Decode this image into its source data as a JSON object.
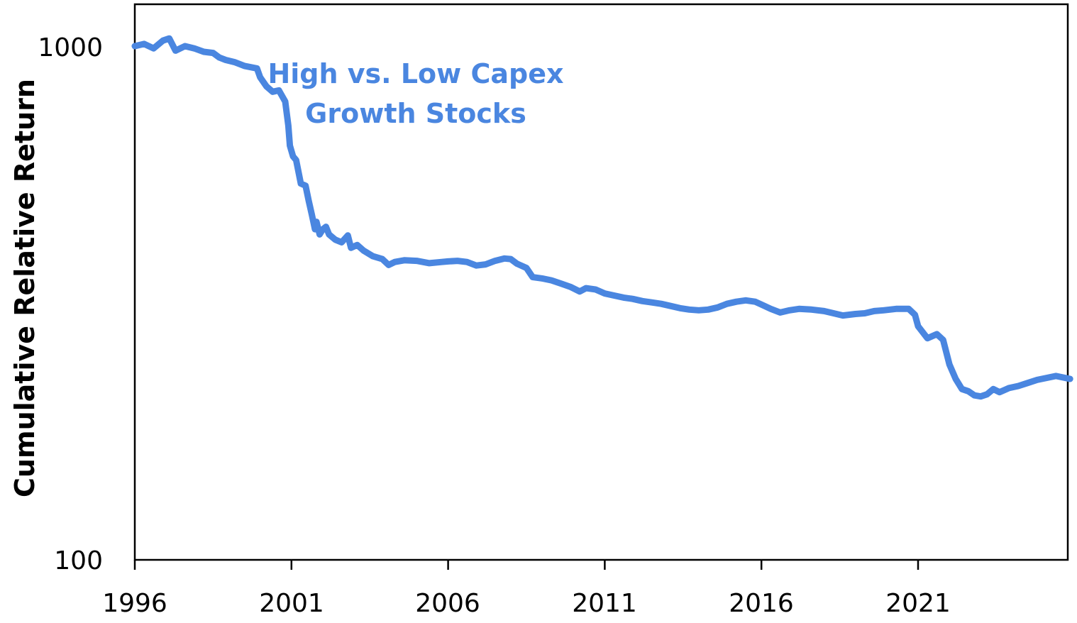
{
  "chart_data": {
    "type": "line",
    "title": "High vs. Low Capex\nGrowth Stocks",
    "ylabel": "Cumulative Relative Return",
    "xlabel": "",
    "yscale": "log",
    "ylim": [
      100,
      1080
    ],
    "xlim": [
      1996,
      2025.85
    ],
    "x_ticks": [
      1996,
      2001,
      2006,
      2011,
      2016,
      2021
    ],
    "y_ticks": [
      100,
      1000
    ],
    "grid": false,
    "legend": "none",
    "series": [
      {
        "color": "#4a86e0",
        "points": [
          [
            1996.0,
            1000
          ],
          [
            1996.3,
            1010
          ],
          [
            1996.6,
            990
          ],
          [
            1996.9,
            1025
          ],
          [
            1997.1,
            1035
          ],
          [
            1997.3,
            980
          ],
          [
            1997.6,
            1000
          ],
          [
            1997.9,
            990
          ],
          [
            1998.2,
            975
          ],
          [
            1998.5,
            970
          ],
          [
            1998.7,
            950
          ],
          [
            1998.9,
            940
          ],
          [
            1999.2,
            930
          ],
          [
            1999.5,
            915
          ],
          [
            1999.9,
            905
          ],
          [
            2000.0,
            870
          ],
          [
            2000.2,
            835
          ],
          [
            2000.4,
            815
          ],
          [
            2000.6,
            820
          ],
          [
            2000.8,
            780
          ],
          [
            2000.9,
            700
          ],
          [
            2000.95,
            640
          ],
          [
            2001.05,
            610
          ],
          [
            2001.15,
            600
          ],
          [
            2001.3,
            540
          ],
          [
            2001.45,
            535
          ],
          [
            2001.55,
            500
          ],
          [
            2001.65,
            470
          ],
          [
            2001.75,
            440
          ],
          [
            2001.8,
            455
          ],
          [
            2001.9,
            430
          ],
          [
            2002.0,
            440
          ],
          [
            2002.1,
            445
          ],
          [
            2002.2,
            430
          ],
          [
            2002.4,
            420
          ],
          [
            2002.6,
            415
          ],
          [
            2002.8,
            428
          ],
          [
            2002.9,
            405
          ],
          [
            2003.1,
            410
          ],
          [
            2003.3,
            400
          ],
          [
            2003.6,
            390
          ],
          [
            2003.9,
            385
          ],
          [
            2004.1,
            375
          ],
          [
            2004.3,
            380
          ],
          [
            2004.6,
            383
          ],
          [
            2005.0,
            382
          ],
          [
            2005.4,
            378
          ],
          [
            2005.8,
            380
          ],
          [
            2006.0,
            381
          ],
          [
            2006.3,
            382
          ],
          [
            2006.6,
            380
          ],
          [
            2006.9,
            374
          ],
          [
            2007.2,
            376
          ],
          [
            2007.5,
            382
          ],
          [
            2007.8,
            386
          ],
          [
            2008.0,
            385
          ],
          [
            2008.2,
            377
          ],
          [
            2008.5,
            370
          ],
          [
            2008.7,
            355
          ],
          [
            2009.0,
            353
          ],
          [
            2009.3,
            350
          ],
          [
            2009.6,
            345
          ],
          [
            2009.9,
            340
          ],
          [
            2010.2,
            333
          ],
          [
            2010.4,
            338
          ],
          [
            2010.7,
            336
          ],
          [
            2011.0,
            330
          ],
          [
            2011.3,
            327
          ],
          [
            2011.6,
            324
          ],
          [
            2011.9,
            322
          ],
          [
            2012.2,
            319
          ],
          [
            2012.5,
            317
          ],
          [
            2012.8,
            315
          ],
          [
            2013.1,
            312
          ],
          [
            2013.4,
            309
          ],
          [
            2013.7,
            307
          ],
          [
            2014.0,
            306
          ],
          [
            2014.3,
            307
          ],
          [
            2014.6,
            310
          ],
          [
            2014.9,
            315
          ],
          [
            2015.2,
            318
          ],
          [
            2015.5,
            320
          ],
          [
            2015.8,
            318
          ],
          [
            2016.0,
            314
          ],
          [
            2016.3,
            308
          ],
          [
            2016.6,
            303
          ],
          [
            2016.9,
            306
          ],
          [
            2017.2,
            308
          ],
          [
            2017.6,
            307
          ],
          [
            2018.0,
            305
          ],
          [
            2018.3,
            302
          ],
          [
            2018.6,
            299
          ],
          [
            2019.0,
            301
          ],
          [
            2019.3,
            302
          ],
          [
            2019.6,
            305
          ],
          [
            2019.9,
            306
          ],
          [
            2020.3,
            308
          ],
          [
            2020.7,
            308
          ],
          [
            2020.9,
            300
          ],
          [
            2021.0,
            285
          ],
          [
            2021.3,
            270
          ],
          [
            2021.6,
            275
          ],
          [
            2021.8,
            268
          ],
          [
            2022.0,
            240
          ],
          [
            2022.2,
            225
          ],
          [
            2022.4,
            215
          ],
          [
            2022.6,
            213
          ],
          [
            2022.8,
            209
          ],
          [
            2023.0,
            208
          ],
          [
            2023.2,
            210
          ],
          [
            2023.4,
            215
          ],
          [
            2023.6,
            212
          ],
          [
            2023.9,
            216
          ],
          [
            2024.2,
            218
          ],
          [
            2024.5,
            221
          ],
          [
            2024.8,
            224
          ],
          [
            2025.1,
            226
          ],
          [
            2025.4,
            228
          ],
          [
            2025.7,
            226
          ],
          [
            2025.85,
            225
          ]
        ]
      }
    ]
  },
  "labels": {
    "title_line1": "High vs. Low Capex",
    "title_line2": "Growth Stocks",
    "ylabel": "Cumulative Relative Return",
    "ytick_labels": [
      "1000",
      "100"
    ],
    "xtick_labels": [
      "1996",
      "2001",
      "2006",
      "2011",
      "2016",
      "2021"
    ]
  }
}
